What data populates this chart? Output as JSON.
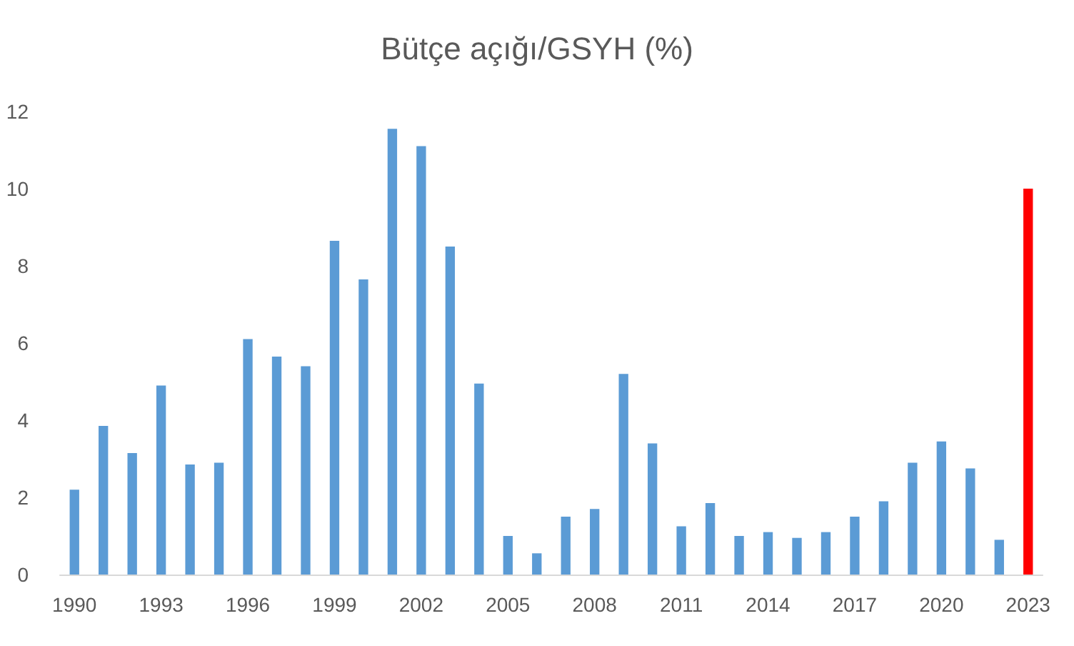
{
  "chart_data": {
    "type": "bar",
    "title": "Bütçe açığı/GSYH (%)",
    "categories": [
      "1990",
      null,
      null,
      "1993",
      null,
      null,
      "1996",
      null,
      null,
      "1999",
      null,
      null,
      "2002",
      null,
      null,
      "2005",
      null,
      null,
      "2008",
      null,
      null,
      "2011",
      null,
      null,
      "2014",
      null,
      null,
      "2017",
      null,
      null,
      "2020",
      null,
      null,
      "2023"
    ],
    "values": [
      2.2,
      3.85,
      3.15,
      4.9,
      2.85,
      2.9,
      6.1,
      5.65,
      5.4,
      8.65,
      7.65,
      11.55,
      11.1,
      8.5,
      4.95,
      1.0,
      0.55,
      1.5,
      1.7,
      5.2,
      3.4,
      1.25,
      1.85,
      1.0,
      1.1,
      0.95,
      1.1,
      1.5,
      1.9,
      2.9,
      3.45,
      2.75,
      0.9,
      10.0
    ],
    "colors": [
      "#5b9bd5",
      "#5b9bd5",
      "#5b9bd5",
      "#5b9bd5",
      "#5b9bd5",
      "#5b9bd5",
      "#5b9bd5",
      "#5b9bd5",
      "#5b9bd5",
      "#5b9bd5",
      "#5b9bd5",
      "#5b9bd5",
      "#5b9bd5",
      "#5b9bd5",
      "#5b9bd5",
      "#5b9bd5",
      "#5b9bd5",
      "#5b9bd5",
      "#5b9bd5",
      "#5b9bd5",
      "#5b9bd5",
      "#5b9bd5",
      "#5b9bd5",
      "#5b9bd5",
      "#5b9bd5",
      "#5b9bd5",
      "#5b9bd5",
      "#5b9bd5",
      "#5b9bd5",
      "#5b9bd5",
      "#5b9bd5",
      "#5b9bd5",
      "#5b9bd5",
      "#ff0000"
    ],
    "ylim": [
      0,
      12
    ],
    "yticks": [
      0,
      2,
      4,
      6,
      8,
      10,
      12
    ],
    "grid": false
  }
}
